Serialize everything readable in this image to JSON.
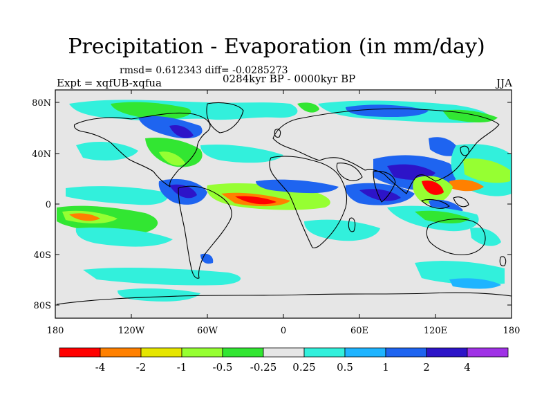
{
  "title": "Precipitation - Evaporation (in mm/day)",
  "stats": "rmsd= 0.612343  diff= -0.0285273",
  "experiment": "Expt = xqfUB-xqfua",
  "period": "0284kyr BP - 0000kyr BP",
  "season": "JJA",
  "axes": {
    "y_ticks": [
      "80N",
      "40N",
      "0",
      "40S",
      "80S"
    ],
    "x_ticks": [
      "180",
      "120W",
      "60W",
      "0",
      "60E",
      "120E",
      "180"
    ]
  },
  "colorbar": {
    "colors": [
      "#ff0000",
      "#ff8000",
      "#e6e600",
      "#96ff32",
      "#32e632",
      "#e6e6e6",
      "#32f0dc",
      "#1eb4ff",
      "#1e64f0",
      "#2d14c8",
      "#a032e6"
    ],
    "labels": [
      "-4",
      "-2",
      "-1",
      "-0.5",
      "-0.25",
      "0.25",
      "0.5",
      "1",
      "2",
      "4"
    ]
  }
}
